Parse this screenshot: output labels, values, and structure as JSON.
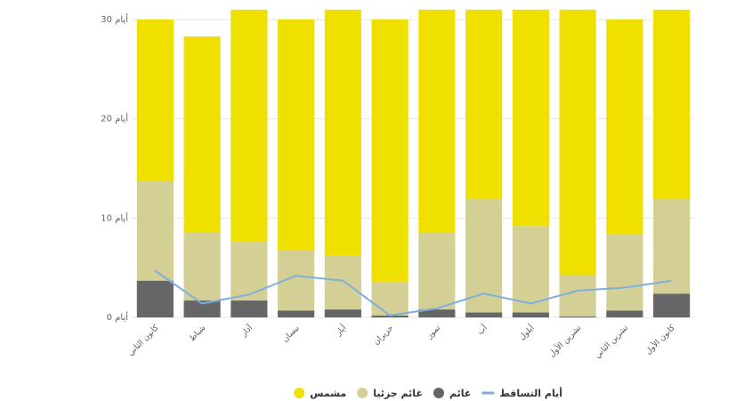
{
  "chart_data": {
    "type": "bar",
    "stacked": true,
    "direction": "rtl",
    "categories": [
      "كانون الثاني",
      "شباط",
      "آذار",
      "نيسان",
      "أيار",
      "حزيران",
      "تموز",
      "آب",
      "أيلول",
      "تشرين الأول",
      "تشرين الثاني",
      "كانون الأول"
    ],
    "series": [
      {
        "name": "غائم",
        "kind": "bar",
        "color": "#666666",
        "values": [
          3.7,
          1.7,
          1.7,
          0.7,
          0.8,
          0.2,
          0.8,
          0.5,
          0.5,
          0.1,
          0.7,
          2.4
        ]
      },
      {
        "name": "غائم جزئيا",
        "kind": "bar",
        "color": "#d4cf94",
        "values": [
          10,
          6.9,
          5.9,
          6.1,
          5.4,
          3.4,
          7.7,
          11.4,
          8.7,
          4.2,
          7.7,
          9.5
        ]
      },
      {
        "name": "مشمس",
        "kind": "bar",
        "color": "#f0e000",
        "values": [
          16.3,
          19.7,
          23.4,
          23.2,
          24.8,
          26.4,
          22.5,
          19.1,
          21.8,
          26.7,
          21.6,
          19.1
        ]
      },
      {
        "name": "أيام التساقط",
        "kind": "line",
        "color": "#7faedd",
        "values": [
          4.7,
          1.4,
          2.3,
          4.2,
          3.7,
          0.2,
          0.9,
          2.4,
          1.4,
          2.7,
          3.0,
          3.7
        ]
      }
    ],
    "yticks": [
      {
        "value": 0,
        "label": "0 أيام"
      },
      {
        "value": 10,
        "label": "10 أيام"
      },
      {
        "value": 20,
        "label": "20 أيام"
      },
      {
        "value": 30,
        "label": "30 أيام"
      }
    ],
    "ylim": [
      0,
      30
    ],
    "legend": {
      "placement": "bottom",
      "items": [
        {
          "label": "أيام التساقط",
          "color": "#7faedd",
          "symbol": "line"
        },
        {
          "label": "غائم",
          "color": "#666666",
          "symbol": "dot"
        },
        {
          "label": "غائم جزئيا",
          "color": "#d4cf94",
          "symbol": "dot"
        },
        {
          "label": "مشمس",
          "color": "#f0e000",
          "symbol": "dot"
        }
      ]
    }
  }
}
